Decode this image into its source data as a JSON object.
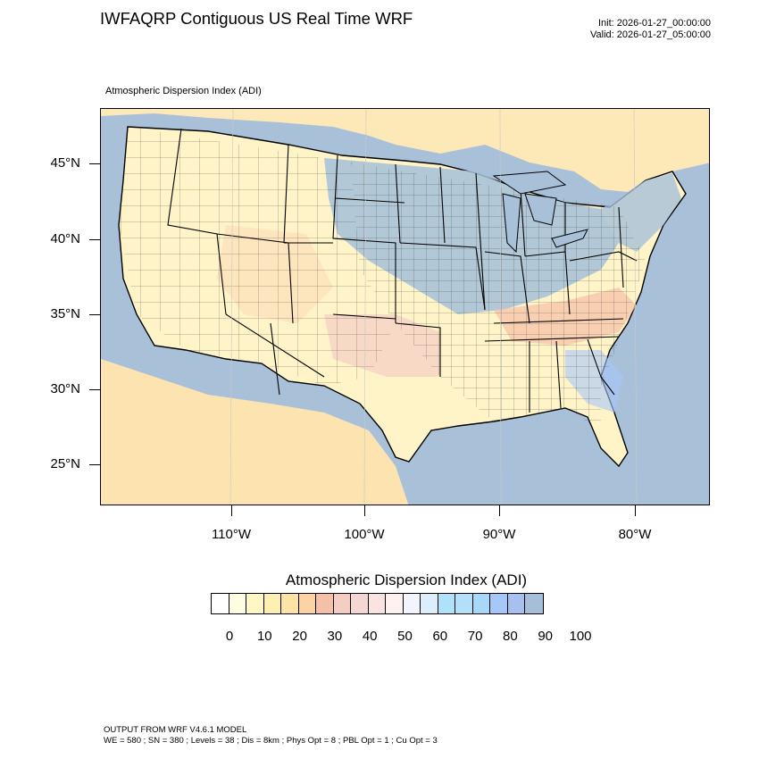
{
  "header": {
    "title": "IWFAQRP Contiguous US Real Time WRF",
    "init": "Init: 2026-01-27_00:00:00",
    "valid": "Valid: 2026-01-27_05:00:00"
  },
  "map": {
    "field_label": "Atmospheric Dispersion Index   (ADI)",
    "lat_labels": [
      "45°N",
      "40°N",
      "35°N",
      "30°N",
      "25°N"
    ],
    "lon_labels": [
      "110°W",
      "100°W",
      "90°W",
      "80°W"
    ],
    "colors": {
      "water": "#a9c0d9",
      "land_low": "#fff9c8",
      "land_mid": "#fbdcb5",
      "land_high": "#a6bfd9"
    }
  },
  "colorbar": {
    "title": "Atmospheric Dispersion Index  (ADI)",
    "colors": [
      "#ffffff",
      "#fffde0",
      "#fff8c4",
      "#fdf0b0",
      "#fde3a4",
      "#fdd2a4",
      "#f6bfa8",
      "#f4cdc4",
      "#f4d7d2",
      "#f9e4e2",
      "#fdf1f1",
      "#f3f4fe",
      "#dceefe",
      "#aee2fb",
      "#b3dff8",
      "#a8d8f8",
      "#a6c8f8",
      "#a6c0f0",
      "#a6bfd9"
    ],
    "labels": [
      "0",
      "10",
      "20",
      "30",
      "40",
      "50",
      "60",
      "70",
      "80",
      "90",
      "100"
    ]
  },
  "footer": {
    "line1": "OUTPUT FROM WRF V4.6.1 MODEL",
    "line2": "WE = 580 ; SN = 380 ; Levels = 38 ; Dis = 8km ; Phys Opt = 8 ; PBL Opt = 1 ; Cu Opt = 3"
  }
}
